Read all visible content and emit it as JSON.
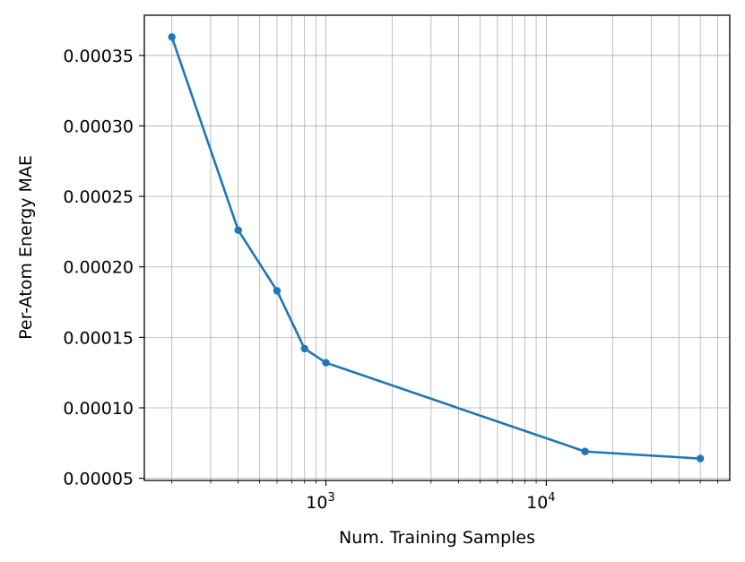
{
  "chart_data": {
    "type": "line",
    "title": "",
    "xlabel": "Num. Training Samples",
    "ylabel": "Per-Atom Energy MAE",
    "x_scale": "log",
    "xlim": [
      150,
      68000
    ],
    "ylim": [
      4.85e-05,
      0.0003785
    ],
    "grid": true,
    "grid_minor_x": true,
    "line_color": "#1f77b4",
    "x_ticks": [
      {
        "value": 1000,
        "base": "10",
        "exponent": "3"
      },
      {
        "value": 10000,
        "base": "10",
        "exponent": "4"
      }
    ],
    "y_ticks": [
      {
        "value": 5e-05,
        "label": "0.00005"
      },
      {
        "value": 0.0001,
        "label": "0.00010"
      },
      {
        "value": 0.00015,
        "label": "0.00015"
      },
      {
        "value": 0.0002,
        "label": "0.00020"
      },
      {
        "value": 0.00025,
        "label": "0.00025"
      },
      {
        "value": 0.0003,
        "label": "0.00030"
      },
      {
        "value": 0.00035,
        "label": "0.00035"
      }
    ],
    "series": [
      {
        "name": "",
        "x": [
          200,
          400,
          600,
          800,
          1000,
          15000,
          50000
        ],
        "y": [
          0.000363,
          0.000226,
          0.000183,
          0.000142,
          0.000132,
          6.9e-05,
          6.4e-05
        ]
      }
    ]
  }
}
